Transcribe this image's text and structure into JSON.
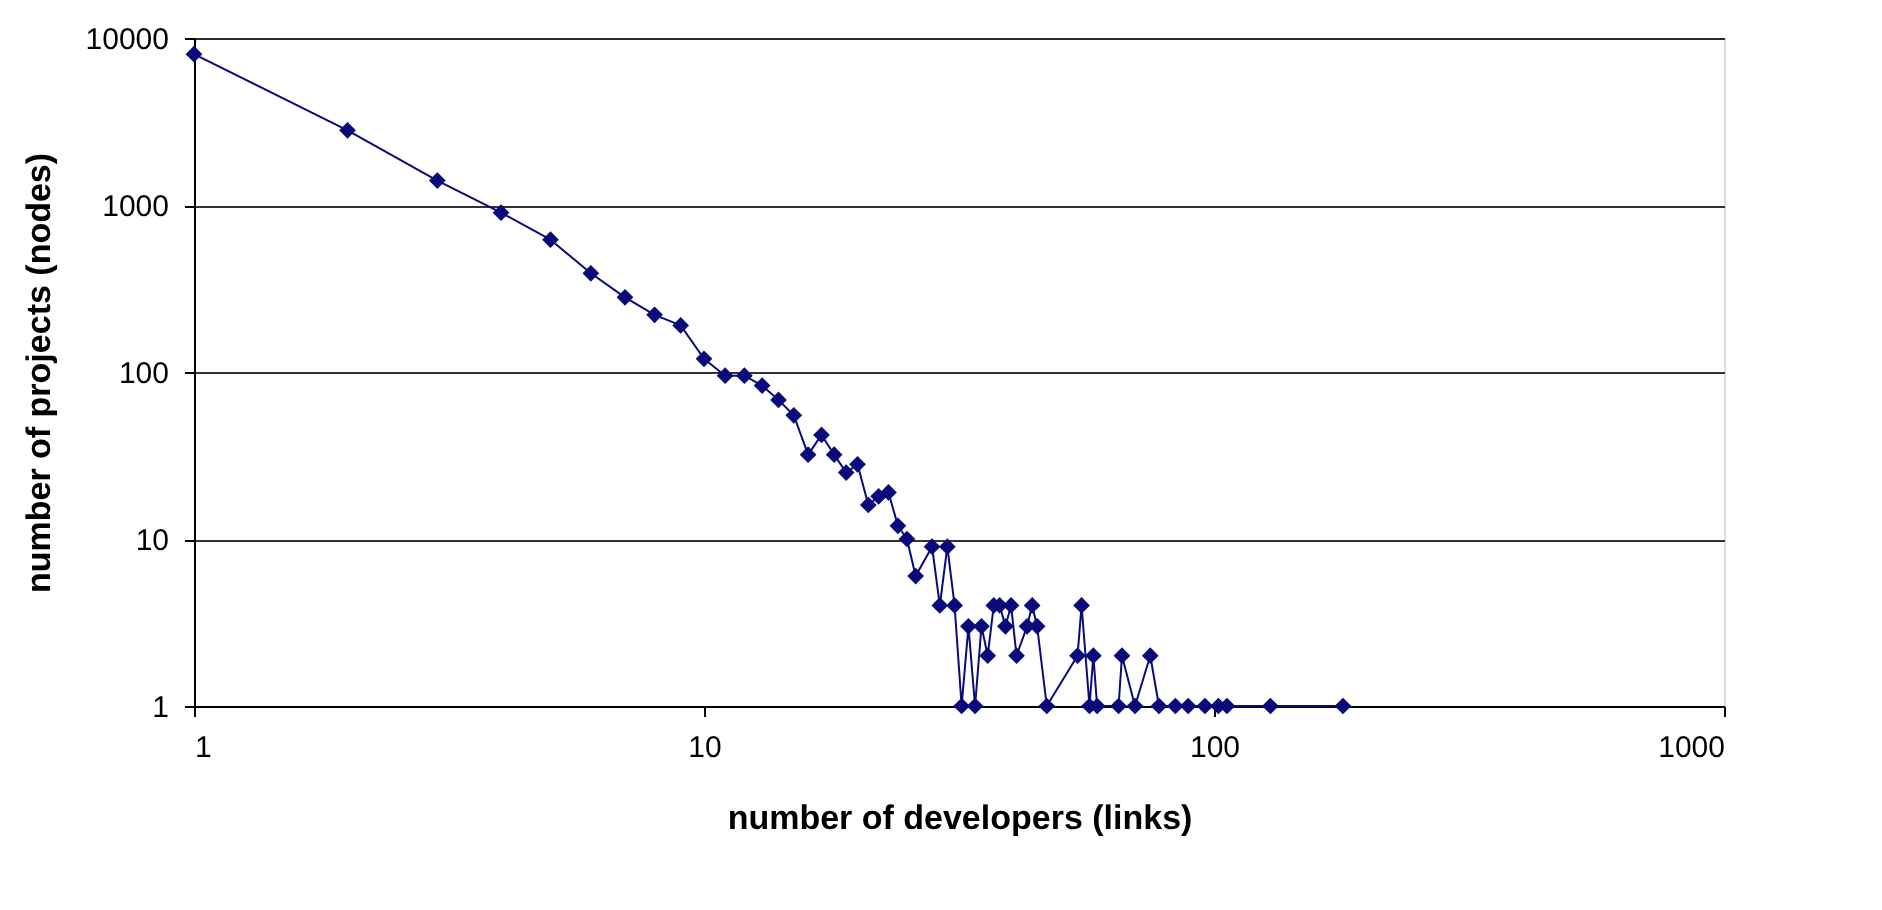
{
  "chart_data": {
    "type": "line",
    "xlabel": "number of developers (links)",
    "ylabel": "number of projects (nodes)",
    "log": "xy",
    "xlim": [
      1,
      1000
    ],
    "xticks": [
      1,
      10,
      100,
      1000
    ],
    "ylim": [
      1,
      10000
    ],
    "yticks": [
      1,
      10,
      100,
      1000,
      10000
    ],
    "grid": "y",
    "marker": "diamond",
    "line_style": "solid",
    "x": [
      1,
      2,
      3,
      4,
      5,
      6,
      7,
      8,
      9,
      10,
      11,
      12,
      13,
      14,
      15,
      16,
      17,
      18,
      19,
      20,
      21,
      22,
      23,
      24,
      25,
      26,
      28,
      29,
      30,
      31,
      32,
      33,
      34,
      35,
      36,
      37,
      38,
      39,
      40,
      41,
      43,
      44,
      45,
      47,
      54,
      55,
      57,
      58,
      59,
      65,
      66,
      70,
      75,
      78,
      84,
      89,
      96,
      102,
      106,
      129,
      179
    ],
    "series": [
      {
        "color": "#0a0a7a",
        "values": [
          8000,
          2800,
          1400,
          900,
          620,
          390,
          280,
          220,
          190,
          120,
          95,
          95,
          83,
          68,
          55,
          32,
          42,
          32,
          25,
          28,
          16,
          18,
          19,
          12,
          10,
          6,
          9,
          4,
          9,
          4,
          1,
          3,
          1,
          3,
          2,
          4,
          4,
          3,
          4,
          2,
          3,
          4,
          3,
          1,
          2,
          4,
          1,
          2,
          1,
          1,
          2,
          1,
          2,
          1,
          1,
          1,
          1,
          1,
          1,
          1,
          1
        ]
      }
    ]
  }
}
